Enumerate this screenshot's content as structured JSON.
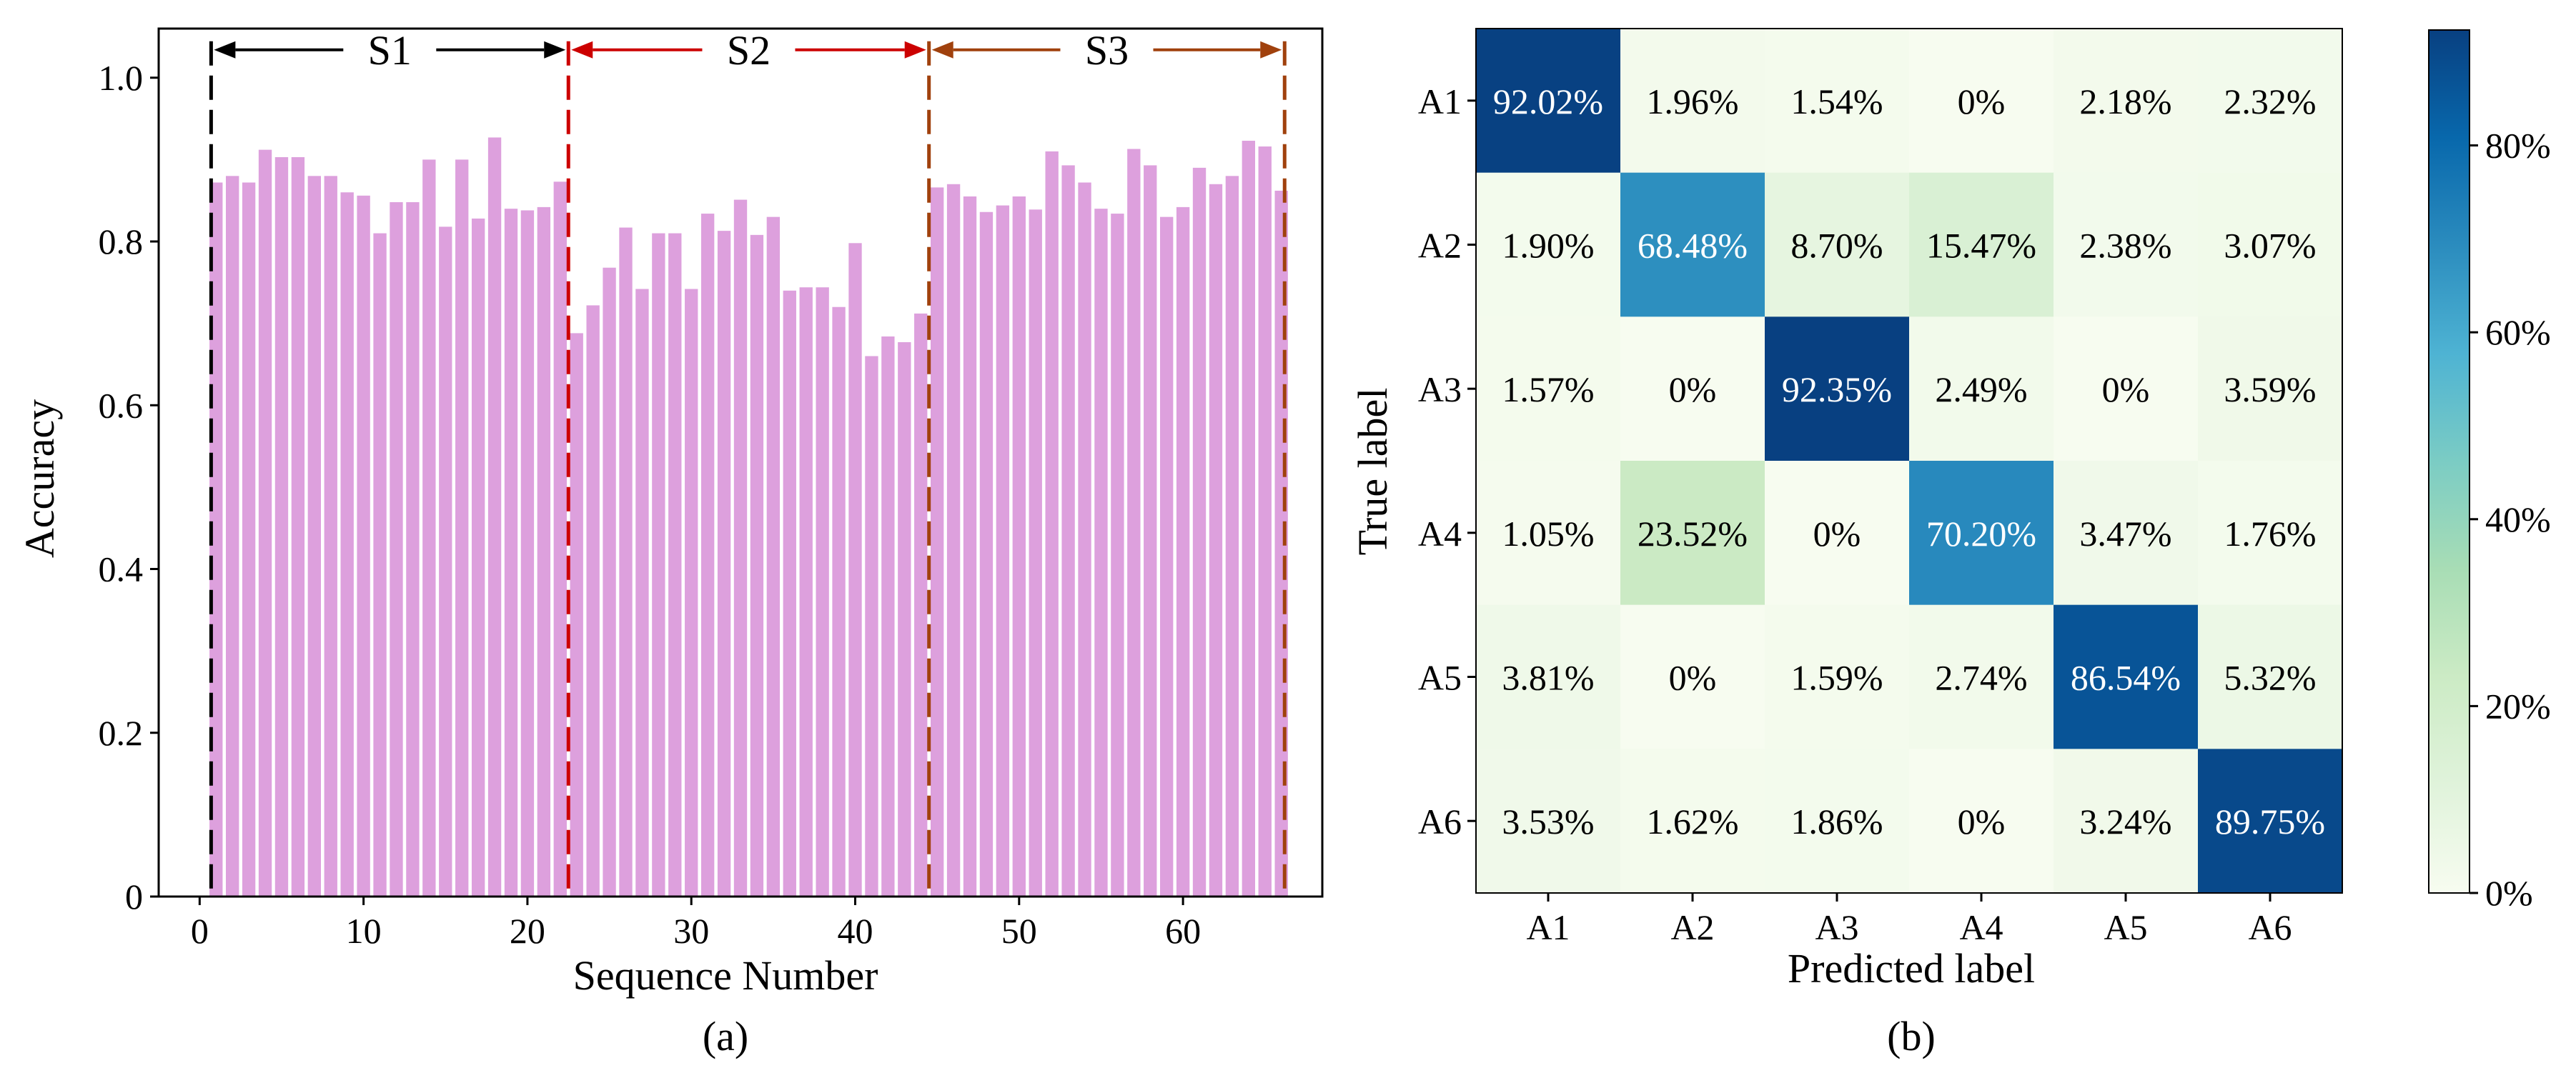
{
  "chart_data": [
    {
      "type": "bar",
      "panel_label": "(a)",
      "title": "",
      "xlabel": "Sequence Number",
      "ylabel": "Accuracy",
      "xlim": [
        -2.5,
        68.5
      ],
      "ylim": [
        0,
        1.06
      ],
      "xticks": [
        0,
        10,
        20,
        30,
        40,
        50,
        60
      ],
      "xtick_labels": [
        "0",
        "10",
        "20",
        "30",
        "40",
        "50",
        "60"
      ],
      "yticks": [
        0,
        0.2,
        0.4,
        0.6,
        0.8,
        1.0
      ],
      "ytick_labels": [
        "0",
        "0.2",
        "0.4",
        "0.6",
        "0.8",
        "1.0"
      ],
      "bar_color": "#dda0dd",
      "x": [
        1,
        2,
        3,
        4,
        5,
        6,
        7,
        8,
        9,
        10,
        11,
        12,
        13,
        14,
        15,
        16,
        17,
        18,
        19,
        20,
        21,
        22,
        23,
        24,
        25,
        26,
        27,
        28,
        29,
        30,
        31,
        32,
        33,
        34,
        35,
        36,
        37,
        38,
        39,
        40,
        41,
        42,
        43,
        44,
        45,
        46,
        47,
        48,
        49,
        50,
        51,
        52,
        53,
        54,
        55,
        56,
        57,
        58,
        59,
        60,
        61,
        62,
        63,
        64,
        65,
        66
      ],
      "values": [
        0.872,
        0.88,
        0.872,
        0.912,
        0.903,
        0.903,
        0.88,
        0.88,
        0.86,
        0.856,
        0.81,
        0.848,
        0.848,
        0.9,
        0.818,
        0.9,
        0.828,
        0.927,
        0.84,
        0.838,
        0.842,
        0.873,
        0.688,
        0.722,
        0.768,
        0.817,
        0.742,
        0.81,
        0.81,
        0.742,
        0.834,
        0.813,
        0.851,
        0.808,
        0.83,
        0.74,
        0.744,
        0.744,
        0.72,
        0.798,
        0.66,
        0.684,
        0.677,
        0.712,
        0.866,
        0.87,
        0.855,
        0.836,
        0.844,
        0.855,
        0.839,
        0.91,
        0.893,
        0.872,
        0.84,
        0.834,
        0.913,
        0.893,
        0.83,
        0.842,
        0.89,
        0.87,
        0.88,
        0.923,
        0.916,
        0.862
      ],
      "segments": [
        {
          "label": "S1",
          "start": 0.7,
          "end": 22.5,
          "color": "#000000"
        },
        {
          "label": "S2",
          "start": 22.5,
          "end": 44.5,
          "color": "#cc0000"
        },
        {
          "label": "S3",
          "start": 44.5,
          "end": 66.2,
          "color": "#a0410d"
        }
      ],
      "segment_line_y": 1.034
    },
    {
      "type": "heatmap",
      "panel_label": "(b)",
      "title": "",
      "xlabel": "Predicted label",
      "ylabel": "True label",
      "row_labels": [
        "A1",
        "A2",
        "A3",
        "A4",
        "A5",
        "A6"
      ],
      "col_labels": [
        "A1",
        "A2",
        "A3",
        "A4",
        "A5",
        "A6"
      ],
      "values": [
        [
          92.02,
          1.96,
          1.54,
          0,
          2.18,
          2.32
        ],
        [
          1.9,
          68.48,
          8.7,
          15.47,
          2.38,
          3.07
        ],
        [
          1.57,
          0,
          92.35,
          2.49,
          0,
          3.59
        ],
        [
          1.05,
          23.52,
          0,
          70.2,
          3.47,
          1.76
        ],
        [
          3.81,
          0,
          1.59,
          2.74,
          86.54,
          5.32
        ],
        [
          3.53,
          1.62,
          1.86,
          0,
          3.24,
          89.75
        ]
      ],
      "cell_labels": [
        [
          "92.02%",
          "1.96%",
          "1.54%",
          "0%",
          "2.18%",
          "2.32%"
        ],
        [
          "1.90%",
          "68.48%",
          "8.70%",
          "15.47%",
          "2.38%",
          "3.07%"
        ],
        [
          "1.57%",
          "0%",
          "92.35%",
          "2.49%",
          "0%",
          "3.59%"
        ],
        [
          "1.05%",
          "23.52%",
          "0%",
          "70.20%",
          "3.47%",
          "1.76%"
        ],
        [
          "3.81%",
          "0%",
          "1.59%",
          "2.74%",
          "86.54%",
          "5.32%"
        ],
        [
          "3.53%",
          "1.62%",
          "1.86%",
          "0%",
          "3.24%",
          "89.75%"
        ]
      ],
      "colormap": "GnBu",
      "colorbar_range": [
        0,
        92.35
      ],
      "colorbar_ticks": [
        0,
        20,
        40,
        60,
        80
      ],
      "colorbar_tick_labels": [
        "0%",
        "20%",
        "40%",
        "60%",
        "80%"
      ]
    }
  ]
}
